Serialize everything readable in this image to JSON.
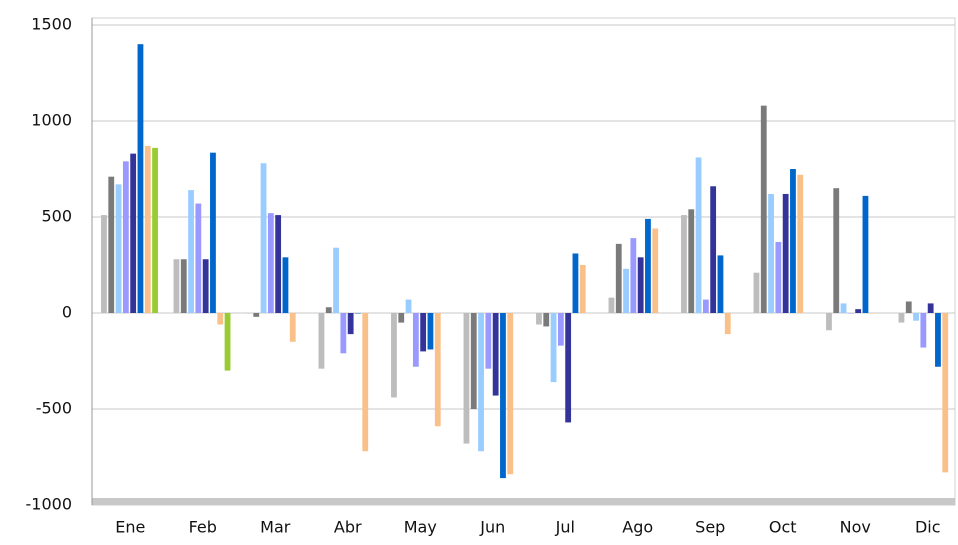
{
  "chart_data": {
    "type": "bar",
    "categories": [
      "Ene",
      "Feb",
      "Mar",
      "Abr",
      "May",
      "Jun",
      "Jul",
      "Ago",
      "Sep",
      "Oct",
      "Nov",
      "Dic"
    ],
    "series": [
      {
        "color": "#bdbdbd",
        "values": [
          510,
          280,
          0,
          -290,
          -440,
          -680,
          -60,
          80,
          510,
          210,
          -90,
          -50
        ]
      },
      {
        "color": "#7a7a7a",
        "values": [
          710,
          280,
          -20,
          30,
          -50,
          -500,
          -70,
          360,
          540,
          1080,
          650,
          60
        ]
      },
      {
        "color": "#99ccff",
        "values": [
          670,
          640,
          780,
          340,
          70,
          -720,
          -360,
          230,
          810,
          620,
          50,
          -40
        ]
      },
      {
        "color": "#9999ff",
        "values": [
          790,
          570,
          520,
          -210,
          -280,
          -290,
          -170,
          390,
          70,
          370,
          0,
          -180
        ]
      },
      {
        "color": "#333399",
        "values": [
          830,
          280,
          510,
          -110,
          -200,
          -430,
          -570,
          290,
          660,
          620,
          20,
          50
        ]
      },
      {
        "color": "#0066cc",
        "values": [
          1400,
          835,
          290,
          0,
          -190,
          -860,
          310,
          490,
          300,
          750,
          610,
          -280
        ]
      },
      {
        "color": "#f9c08a",
        "values": [
          870,
          -60,
          -150,
          -720,
          -590,
          -840,
          250,
          440,
          -110,
          720,
          0,
          -830
        ]
      },
      {
        "color": "#99cc33",
        "values": [
          860,
          -300,
          null,
          null,
          null,
          null,
          null,
          null,
          null,
          null,
          null,
          null
        ]
      }
    ],
    "ylim": [
      -1000,
      1500
    ],
    "yticks": [
      -1000,
      -500,
      0,
      500,
      1000,
      1500
    ],
    "grid": true
  }
}
